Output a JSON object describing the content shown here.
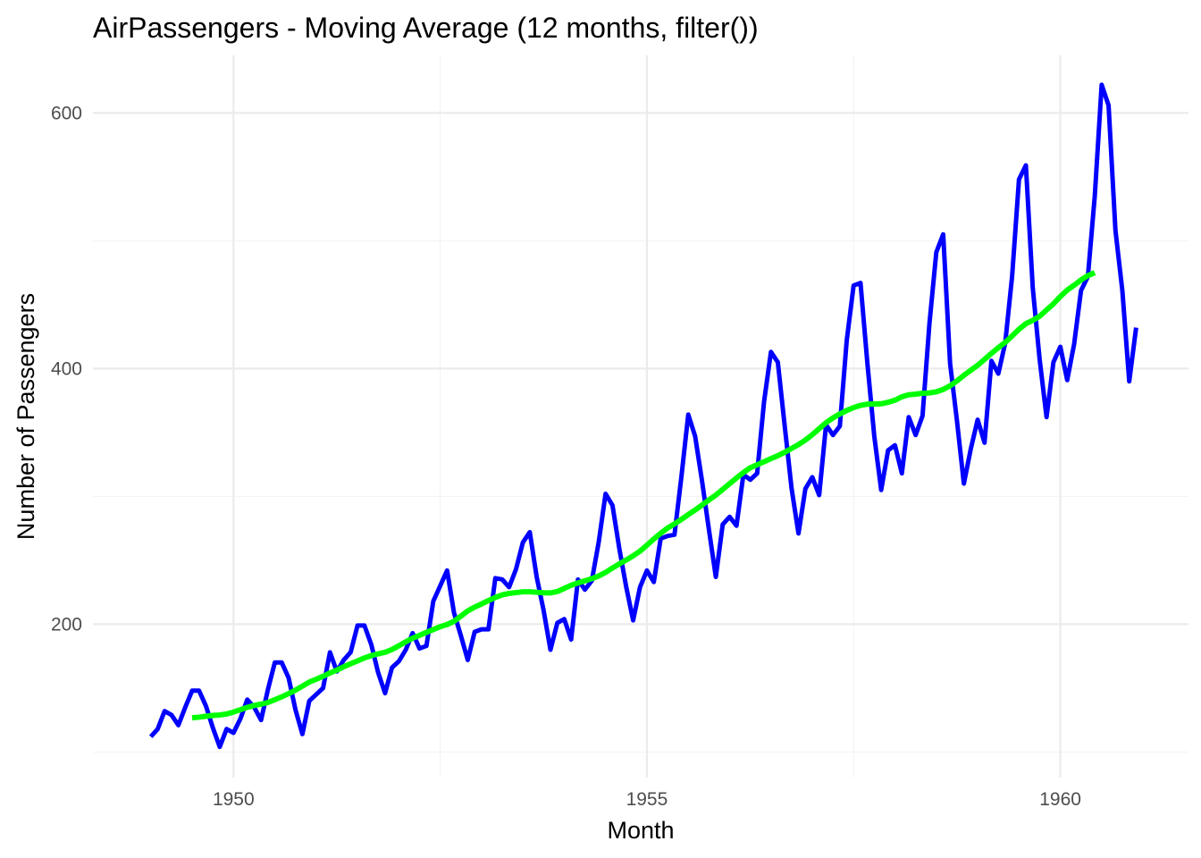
{
  "chart_data": {
    "type": "line",
    "title": "AirPassengers - Moving Average (12 months, filter())",
    "xlabel": "Month",
    "ylabel": "Number of Passengers",
    "x_axis": {
      "type": "date",
      "start": "1949-01",
      "frequency": "monthly",
      "ticks": [
        1950,
        1955,
        1960
      ],
      "range": [
        1948.3,
        1961.55
      ]
    },
    "y_axis": {
      "ticks": [
        200,
        400,
        600
      ],
      "range": [
        80,
        645
      ]
    },
    "grid": true,
    "legend": "none",
    "colors": {
      "passengers": "#0000ff",
      "moving_average": "#00ff00"
    },
    "series": [
      {
        "start": "1949-01",
        "values": [
          112,
          118,
          132,
          129,
          121,
          135,
          148,
          148,
          136,
          119,
          104,
          118,
          115,
          126,
          141,
          135,
          125,
          149,
          170,
          170,
          158,
          133,
          114,
          140,
          145,
          150,
          178,
          163,
          172,
          178,
          199,
          199,
          184,
          162,
          146,
          166,
          171,
          180,
          193,
          181,
          183,
          218,
          230,
          242,
          209,
          191,
          172,
          194,
          196,
          196,
          236,
          235,
          229,
          243,
          264,
          272,
          237,
          211,
          180,
          201,
          204,
          188,
          235,
          227,
          234,
          264,
          302,
          293,
          259,
          229,
          203,
          229,
          242,
          233,
          267,
          269,
          270,
          315,
          364,
          347,
          312,
          274,
          237,
          278,
          284,
          277,
          317,
          313,
          318,
          374,
          413,
          405,
          355,
          306,
          271,
          306,
          315,
          301,
          356,
          348,
          355,
          422,
          465,
          467,
          404,
          347,
          305,
          336,
          340,
          318,
          362,
          348,
          363,
          435,
          491,
          505,
          404,
          359,
          310,
          337,
          360,
          342,
          406,
          396,
          420,
          472,
          548,
          559,
          463,
          407,
          362,
          405,
          417,
          391,
          419,
          461,
          472,
          535,
          622,
          606,
          508,
          461,
          390,
          432
        ]
      },
      {
        "start": "1949-07",
        "values": [
          126.79,
          127.25,
          127.96,
          128.58,
          129.0,
          129.75,
          131.25,
          133.08,
          134.92,
          136.42,
          137.42,
          138.75,
          140.92,
          143.17,
          145.71,
          148.42,
          151.54,
          154.71,
          156.92,
          159.25,
          161.83,
          164.08,
          166.67,
          169.08,
          171.25,
          173.58,
          175.46,
          176.83,
          178.04,
          180.17,
          183.13,
          186.21,
          189.04,
          191.29,
          193.58,
          195.83,
          198.04,
          199.75,
          202.21,
          206.25,
          210.42,
          213.38,
          215.83,
          218.5,
          220.92,
          222.92,
          224.08,
          224.71,
          225.33,
          225.33,
          224.96,
          224.58,
          224.46,
          225.54,
          228.0,
          230.46,
          232.25,
          233.92,
          235.63,
          237.75,
          240.5,
          243.96,
          247.17,
          250.25,
          253.5,
          257.13,
          261.83,
          266.67,
          271.13,
          275.21,
          278.5,
          281.96,
          285.75,
          289.33,
          293.25,
          297.17,
          301.0,
          305.46,
          309.96,
          314.42,
          318.63,
          322.38,
          324.75,
          327.08,
          329.54,
          331.83,
          334.46,
          337.54,
          340.54,
          344.08,
          348.25,
          353.0,
          357.63,
          361.38,
          364.5,
          367.17,
          369.46,
          371.21,
          372.17,
          372.29,
          372.46,
          373.63,
          375.25,
          377.92,
          379.5,
          380.0,
          380.71,
          380.96,
          381.83,
          383.67,
          386.5,
          390.33,
          394.71,
          398.63,
          402.54,
          407.17,
          411.88,
          416.33,
          420.5,
          425.5,
          430.71,
          435.13,
          437.71,
          440.96,
          445.83,
          450.63,
          456.33,
          461.38,
          465.21,
          469.33,
          472.75,
          475.04
        ]
      }
    ]
  }
}
